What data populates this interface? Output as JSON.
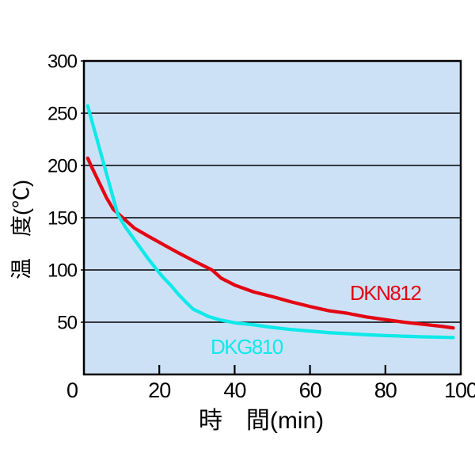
{
  "chart_data": {
    "type": "line",
    "title": "",
    "xlabel": "時　間(min)",
    "ylabel": "温　度(℃)",
    "xlim": [
      0,
      100
    ],
    "ylim": [
      0,
      300
    ],
    "x_ticks": [
      0,
      20,
      40,
      60,
      80,
      100
    ],
    "y_ticks": [
      50,
      100,
      150,
      200,
      250,
      300
    ],
    "grid": "horizontal-only",
    "legend_position": "inline-annotations",
    "plot_background": "#cde1f6",
    "series": [
      {
        "name": "DKN812",
        "color": "#e30613",
        "points": [
          [
            1,
            207
          ],
          [
            2,
            199
          ],
          [
            4,
            184
          ],
          [
            6,
            169
          ],
          [
            7.8,
            158
          ],
          [
            10,
            151
          ],
          [
            13.4,
            140
          ],
          [
            17,
            132.5
          ],
          [
            21,
            124.5
          ],
          [
            25,
            116.5
          ],
          [
            29,
            109
          ],
          [
            31.5,
            104.5
          ],
          [
            34,
            100
          ],
          [
            36.5,
            92
          ],
          [
            40,
            85.5
          ],
          [
            45,
            79
          ],
          [
            50,
            74.5
          ],
          [
            55,
            69.5
          ],
          [
            60,
            65
          ],
          [
            65,
            61
          ],
          [
            70,
            58.5
          ],
          [
            75,
            55
          ],
          [
            80,
            52.5
          ],
          [
            85,
            50
          ],
          [
            90,
            48
          ],
          [
            95,
            46
          ],
          [
            98,
            44.5
          ]
        ]
      },
      {
        "name": "DKG810",
        "color": "#0fe9e9",
        "points": [
          [
            1,
            257
          ],
          [
            3,
            231
          ],
          [
            5,
            205
          ],
          [
            7,
            179
          ],
          [
            9,
            153
          ],
          [
            11,
            141
          ],
          [
            13,
            131
          ],
          [
            15,
            121
          ],
          [
            17,
            111
          ],
          [
            19.4,
            100
          ],
          [
            21,
            93
          ],
          [
            23,
            85.5
          ],
          [
            25,
            77
          ],
          [
            27,
            69.5
          ],
          [
            29,
            62.5
          ],
          [
            31,
            59
          ],
          [
            33,
            55.5
          ],
          [
            36,
            52.3
          ],
          [
            40,
            49.5
          ],
          [
            45,
            47.5
          ],
          [
            50,
            45
          ],
          [
            55,
            43
          ],
          [
            60,
            41.5
          ],
          [
            65,
            40
          ],
          [
            70,
            39
          ],
          [
            75,
            38
          ],
          [
            80,
            37.2
          ],
          [
            85,
            36.6
          ],
          [
            90,
            36
          ],
          [
            95,
            35.6
          ],
          [
            98,
            35.3
          ]
        ]
      }
    ]
  }
}
